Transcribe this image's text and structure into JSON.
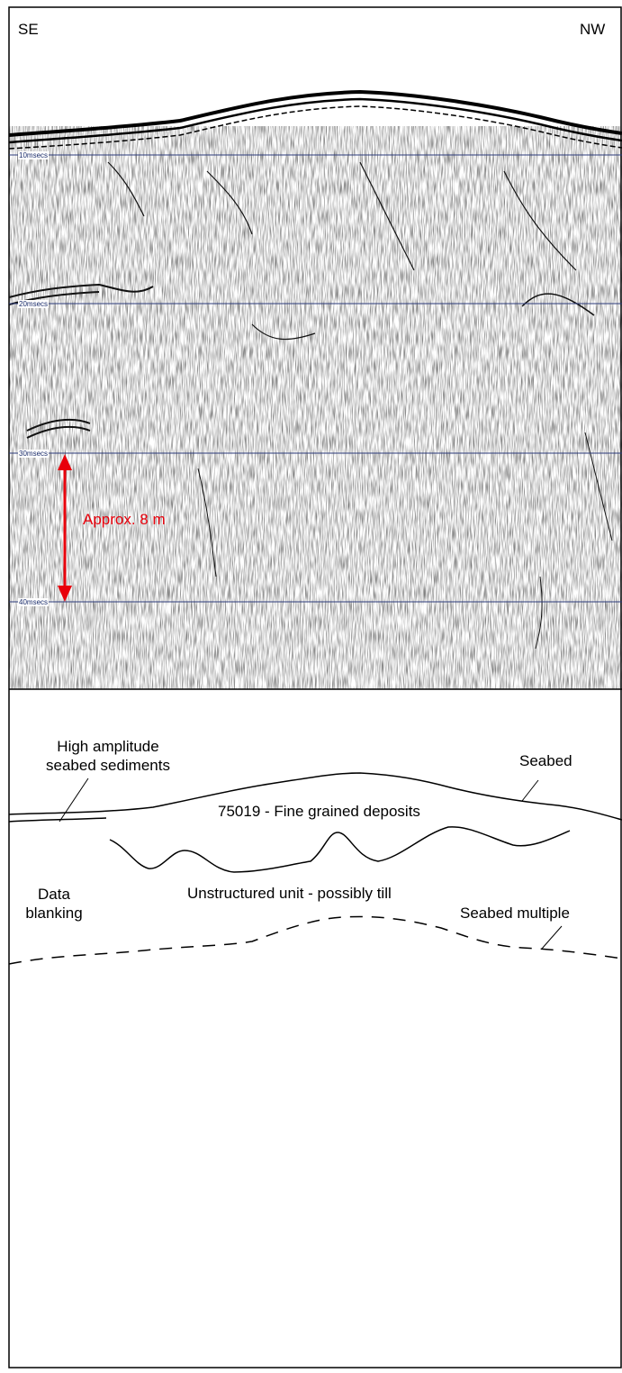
{
  "panel_top": {
    "direction_left": "SE",
    "direction_right": "NW",
    "time_ticks": [
      "10msecs",
      "20msecs",
      "30msecs",
      "40msecs"
    ],
    "scale_annotation": "Approx. 8 m",
    "annotation_color": "#e8000b",
    "tick_line_color": "#2b3a7a"
  },
  "panel_bottom": {
    "labels": {
      "high_amplitude_line1": "High amplitude",
      "high_amplitude_line2": "seabed sediments",
      "seabed": "Seabed",
      "fine_grained": "75019 - Fine grained deposits",
      "data_blanking_line1": "Data",
      "data_blanking_line2": "blanking",
      "unstructured": "Unstructured unit - possibly till",
      "seabed_multiple": "Seabed multiple"
    }
  }
}
